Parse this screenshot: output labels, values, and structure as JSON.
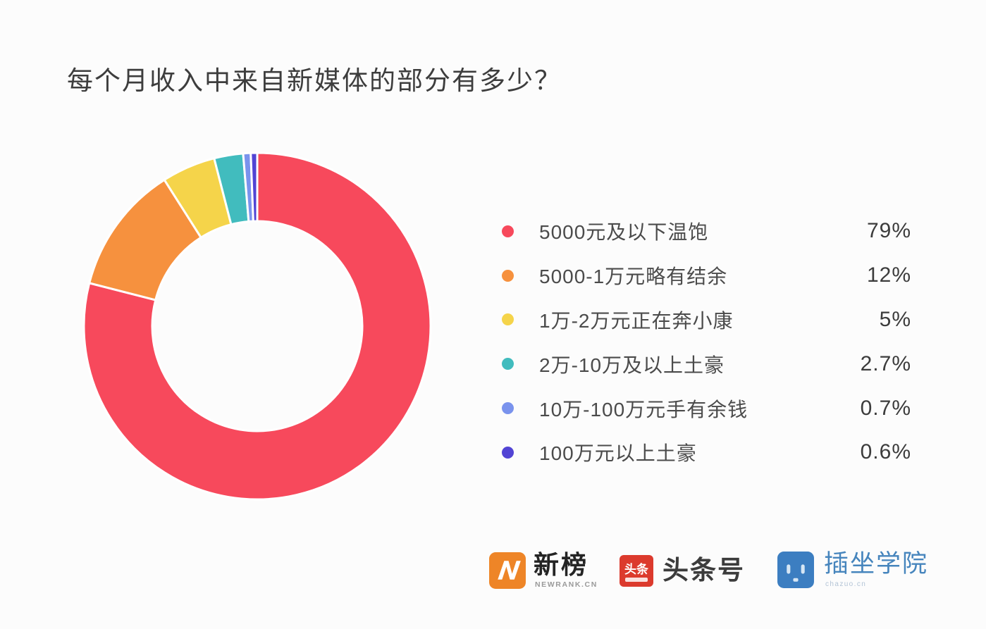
{
  "title": "每个月收入中来自新媒体的部分有多少？",
  "chart_data": {
    "type": "pie",
    "subtype": "donut",
    "title": "每个月收入中来自新媒体的部分有多少？",
    "start_angle_deg": 0,
    "direction": "clockwise",
    "inner_radius_ratio": 0.61,
    "legend_position": "right",
    "categories": [
      "5000元及以下温饱",
      "5000-1万元略有结余",
      "1万-2万元正在奔小康",
      "2万-10万及以上土豪",
      "10万-100万元手有余钱",
      "100万元以上土豪"
    ],
    "values": [
      79,
      12,
      5,
      2.7,
      0.7,
      0.6
    ],
    "slices": [
      {
        "label": "5000元及以下温饱",
        "value_pct": 79,
        "display": "79%",
        "color": "#F7495C"
      },
      {
        "label": "5000-1万元略有结余",
        "value_pct": 12,
        "display": "12%",
        "color": "#F6913E"
      },
      {
        "label": "1万-2万元正在奔小康",
        "value_pct": 5,
        "display": "5%",
        "color": "#F5D44A"
      },
      {
        "label": "2万-10万及以上土豪",
        "value_pct": 2.7,
        "display": "2.7%",
        "color": "#41BCBE"
      },
      {
        "label": "10万-100万元手有余钱",
        "value_pct": 0.7,
        "display": "0.7%",
        "color": "#7A93ED"
      },
      {
        "label": "100万元以上土豪",
        "value_pct": 0.6,
        "display": "0.6%",
        "color": "#5244D4"
      }
    ]
  },
  "footer": {
    "logos": [
      {
        "name": "新榜",
        "subtext": "NEWRANK.CN",
        "icon": "newrank-logo",
        "icon_color": "#EE8527"
      },
      {
        "name": "头条号",
        "icon_text": "头条",
        "icon": "toutiao-logo",
        "icon_color": "#DC3A2D"
      },
      {
        "name": "插坐学院",
        "subtext": "chazuo.cn",
        "icon": "chazuo-logo",
        "icon_color": "#3C7EC1"
      }
    ]
  }
}
